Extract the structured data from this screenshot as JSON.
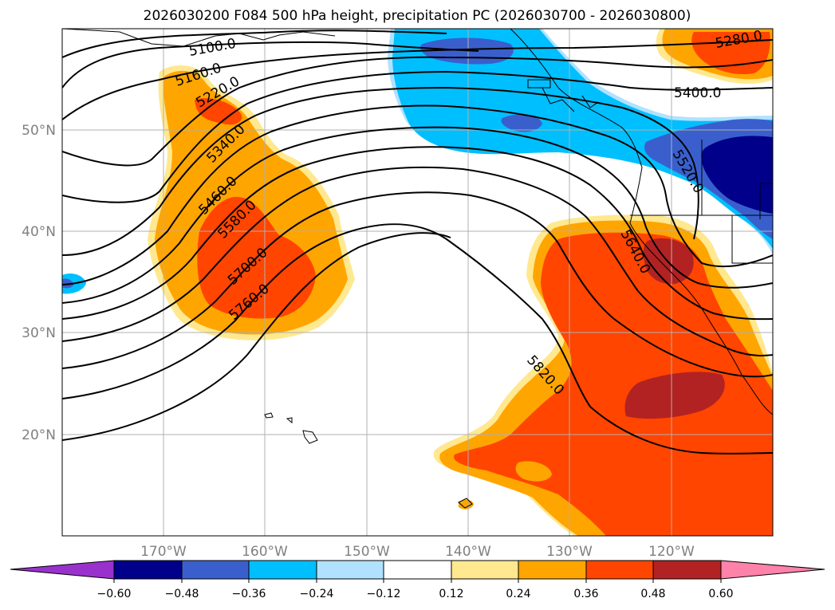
{
  "title": "2026030200 F084 500 hPa height, precipitation PC (2026030700 - 2026030800)",
  "map": {
    "lon_labels": [
      "170°W",
      "160°W",
      "150°W",
      "140°W",
      "130°W",
      "120°W"
    ],
    "lat_labels": [
      "50°N",
      "40°N",
      "30°N",
      "20°N"
    ]
  },
  "contour_labels": [
    "5100.0",
    "5160.0",
    "5220.0",
    "5280.0",
    "5340.0",
    "5400.0",
    "5460.0",
    "5520.0",
    "5580.0",
    "5640.0",
    "5700.0",
    "5760.0",
    "5820.0"
  ],
  "colorbar": {
    "colors": [
      "#9932cc",
      "#00008b",
      "#3a5fcd",
      "#00bfff",
      "#b0e2ff",
      "#ffffff",
      "#ffe88f",
      "#ffa500",
      "#ff4500",
      "#b22222",
      "#ff82ab"
    ],
    "tick_labels": [
      "−0.60",
      "−0.48",
      "−0.36",
      "−0.24",
      "−0.12",
      "0.12",
      "0.24",
      "0.36",
      "0.48",
      "0.60"
    ]
  }
}
